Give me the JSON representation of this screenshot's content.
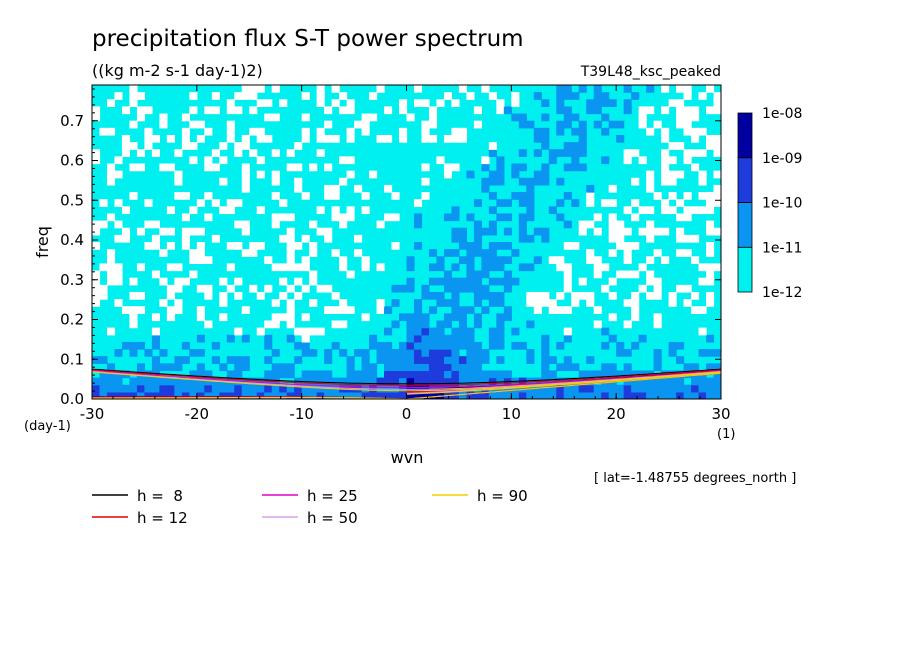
{
  "chart_data": {
    "type": "heatmap",
    "title": "precipitation flux S-T power spectrum",
    "subtitle": "((kg m-2 s-1 day-1)2)",
    "experiment": "T39L48_ksc_peaked",
    "xlabel": "wvn",
    "ylabel": "freq",
    "x_unit": "(1)",
    "y_unit": "(day-1)",
    "footnote": "[ lat=-1.48755 degrees_north ]",
    "xlim": [
      -30,
      30
    ],
    "ylim": [
      0,
      0.79
    ],
    "x_ticks": [
      -30,
      -20,
      -10,
      0,
      10,
      20,
      30
    ],
    "x_tick_labels": [
      "-30",
      "-20",
      "-10",
      "0",
      "10",
      "20",
      "30"
    ],
    "y_ticks": [
      0,
      0.1,
      0.2,
      0.3,
      0.4,
      0.5,
      0.6,
      0.7
    ],
    "y_tick_labels": [
      "0.0",
      "0.1",
      "0.2",
      "0.3",
      "0.4",
      "0.5",
      "0.6",
      "0.7"
    ],
    "colorbar": {
      "levels": [
        "1e-12",
        "1e-11",
        "1e-10",
        "1e-09",
        "1e-08"
      ],
      "colors": [
        "#ffffff",
        "#00f0f0",
        "#0a96f0",
        "#1e3cdc",
        "#0000a0",
        "#5014b4"
      ]
    },
    "dispersion_curves": [
      {
        "h": 8,
        "label": "h =  8",
        "color": "#000000"
      },
      {
        "h": 12,
        "label": "h = 12",
        "color": "#e00000"
      },
      {
        "h": 25,
        "label": "h = 25",
        "color": "#e000c8"
      },
      {
        "h": 50,
        "label": "h = 50",
        "color": "#d8a0e8"
      },
      {
        "h": 90,
        "label": "h = 90",
        "color": "#f0d000"
      }
    ],
    "grid": false,
    "legend_position": "bottom-left"
  }
}
